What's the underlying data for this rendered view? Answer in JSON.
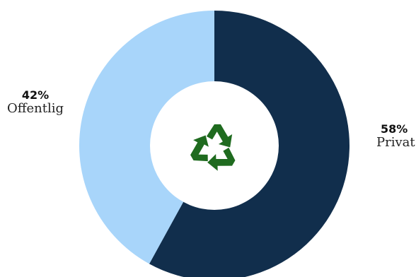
{
  "chart_data": {
    "type": "pie",
    "donut": true,
    "title": "",
    "categories": [
      "Offentlig",
      "Privat"
    ],
    "values": [
      42,
      58
    ],
    "labels": [
      "42%",
      "58%"
    ],
    "colors": [
      "#a8d5fa",
      "#112e4c"
    ],
    "center_icon": "recycle-icon",
    "center_icon_color": "#1f6b1f",
    "legend": "none",
    "start": "top",
    "direction": "clockwise-from-private"
  }
}
